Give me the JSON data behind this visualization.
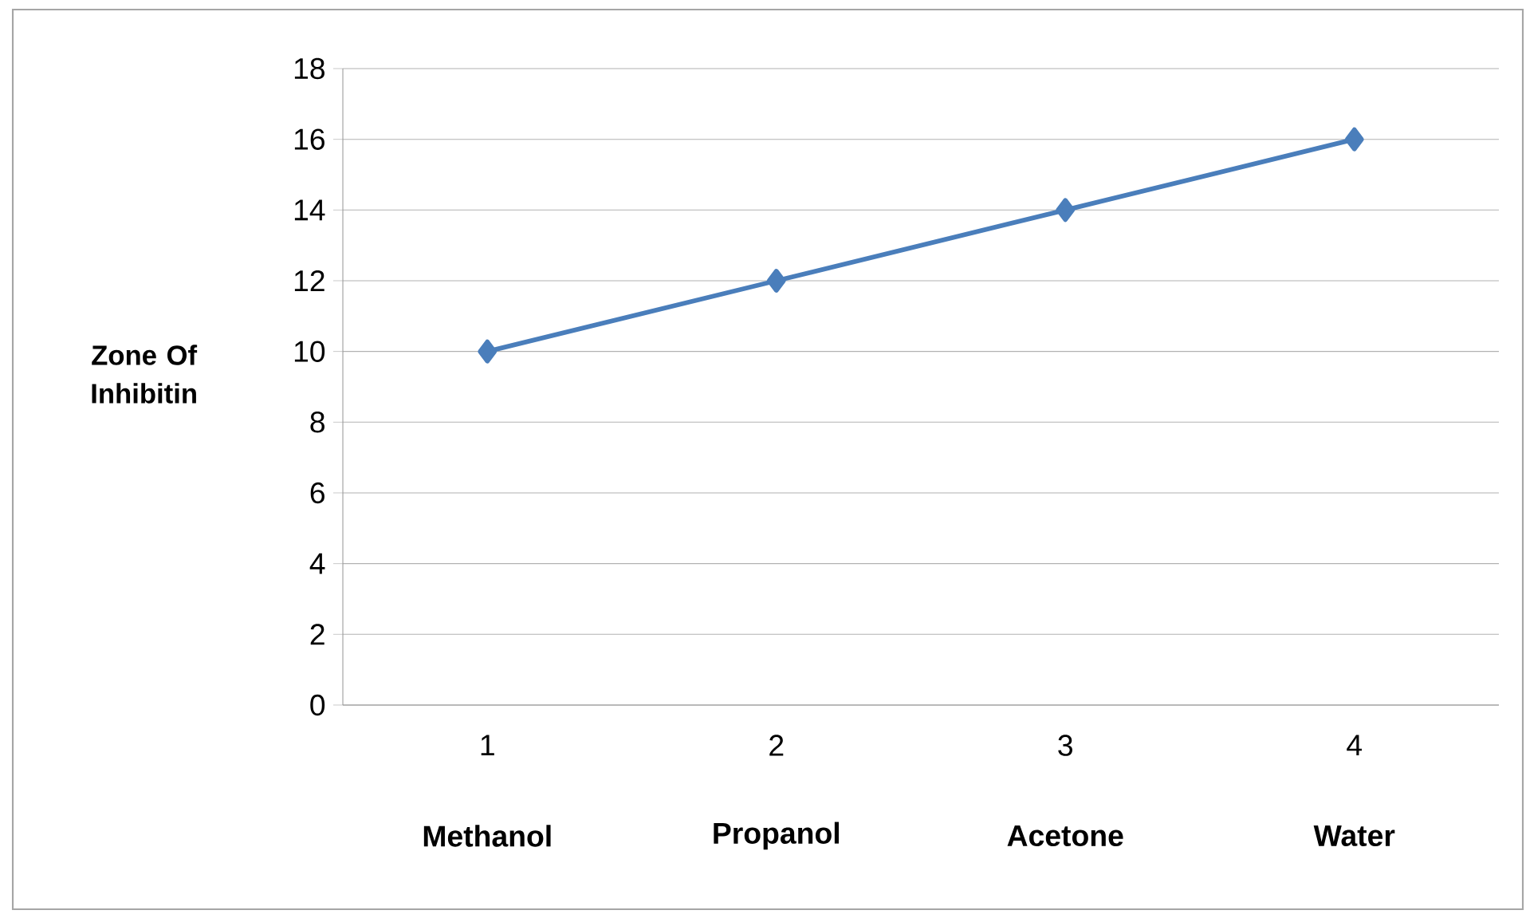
{
  "chart_data": {
    "type": "line",
    "categories": [
      "1",
      "2",
      "3",
      "4"
    ],
    "series": [
      {
        "color": "#4a7ebb",
        "values": [
          10,
          12,
          14,
          16
        ]
      }
    ],
    "ylabel": "Zone Of Inhibitin",
    "ylim": [
      0,
      18
    ],
    "yticks": [
      0,
      2,
      4,
      6,
      8,
      10,
      12,
      14,
      16,
      18
    ],
    "grid": "y",
    "marker": "diamond",
    "line_style": "solid",
    "annotations": [
      "Methanol",
      "Propanol",
      "Acetone",
      "Water"
    ]
  }
}
